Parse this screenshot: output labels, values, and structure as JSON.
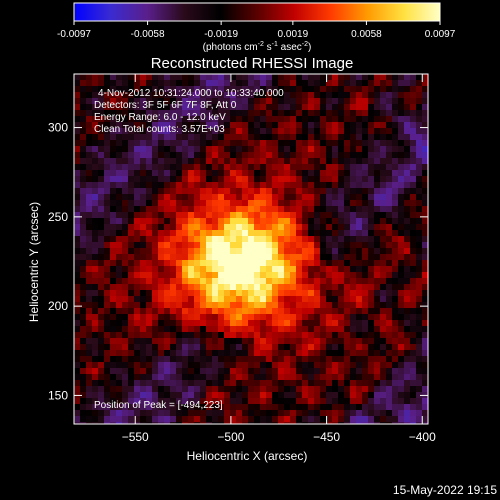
{
  "colorbar": {
    "ticks": [
      "-0.0097",
      "-0.0058",
      "-0.0019",
      "0.0019",
      "0.0058",
      "0.0097"
    ],
    "range": [
      -0.0097,
      0.0097
    ],
    "unit_parts": [
      "(photons cm",
      "-2",
      " s",
      "-1",
      " asec",
      "-2",
      ")"
    ],
    "colors": [
      "#0000ff",
      "#3a2bd0",
      "#5a1f8a",
      "#2a0a1a",
      "#000000",
      "#5a0000",
      "#c00000",
      "#ff3a00",
      "#ff9a00",
      "#ffe040",
      "#ffffc8"
    ]
  },
  "chart_data": {
    "type": "heatmap",
    "title": "Reconstructed RHESSI Image",
    "xlabel": "Heliocentric X (arcsec)",
    "ylabel": "Heliocentric Y (arcsec)",
    "xlim": [
      -582,
      -397
    ],
    "ylim": [
      134,
      330
    ],
    "xticks": [
      -550,
      -500,
      -450,
      -400
    ],
    "yticks": [
      150,
      200,
      250,
      300
    ],
    "annotations": [
      "4-Nov-2012 10:31:24.000 to 10:33:40.000",
      "Detectors: 3F 5F 6F 7F 8F, Att 0",
      "Energy Range: 6.0 - 12.0 keV",
      "Clean    Total counts: 3.57E+03"
    ],
    "peak_label": "Position of Peak = [-494,223]",
    "peak": [
      -494,
      223
    ],
    "value_range": [
      -0.0097,
      0.0097
    ]
  },
  "footer": {
    "timestamp": "15-May-2022 19:15"
  }
}
